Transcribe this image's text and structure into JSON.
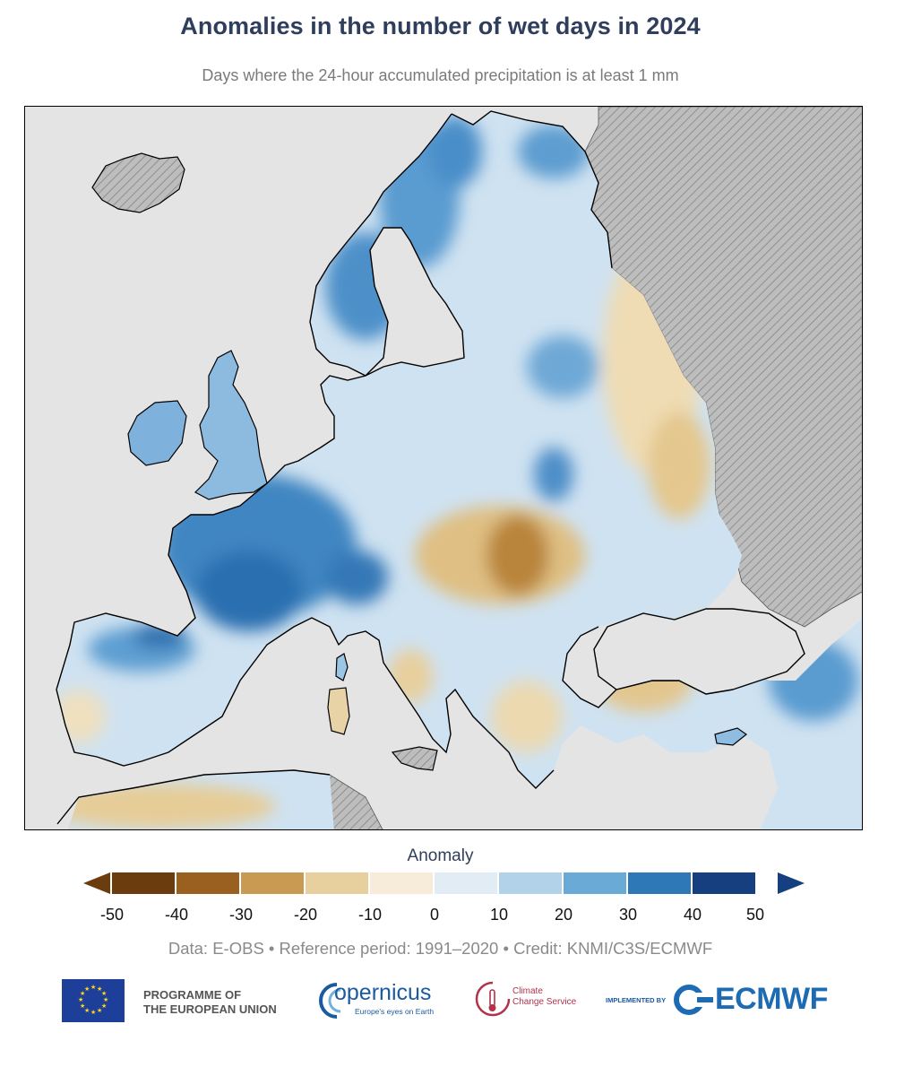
{
  "header": {
    "title": "Anomalies in the number of wet days in 2024",
    "subtitle": "Days where the 24-hour accumulated precipitation is at least 1 mm"
  },
  "legend": {
    "title": "Anomaly",
    "bins": [
      {
        "from": -50,
        "to": -40,
        "color": "#6b3d0e"
      },
      {
        "from": -40,
        "to": -30,
        "color": "#9a6020"
      },
      {
        "from": -30,
        "to": -20,
        "color": "#c99a52"
      },
      {
        "from": -20,
        "to": -10,
        "color": "#e8d09e"
      },
      {
        "from": -10,
        "to": 0,
        "color": "#f6ecd9"
      },
      {
        "from": 0,
        "to": 10,
        "color": "#e2ecf5"
      },
      {
        "from": 10,
        "to": 20,
        "color": "#b2d2ea"
      },
      {
        "from": 20,
        "to": 30,
        "color": "#6aaad6"
      },
      {
        "from": 30,
        "to": 40,
        "color": "#2f78b7"
      },
      {
        "from": 40,
        "to": 50,
        "color": "#153f7e"
      }
    ],
    "tick_labels": [
      "-50",
      "-40",
      "-30",
      "-20",
      "-10",
      "0",
      "10",
      "20",
      "30",
      "40",
      "50"
    ],
    "extend_low_color": "#6b3d0e",
    "extend_high_color": "#153f7e"
  },
  "map": {
    "sea_color": "#e4e4e4",
    "no_data_color": "#b9b9b9"
  },
  "footer": {
    "credit": "Data: E-OBS • Reference period: 1991–2020 • Credit: KNMI/C3S/ECMWF",
    "eu_text_line1": "PROGRAMME OF",
    "eu_text_line2": "THE EUROPEAN UNION",
    "copernicus_name": "opernicus",
    "copernicus_tag": "Europe's eyes on Earth",
    "c3s_line1": "Climate",
    "c3s_line2": "Change Service",
    "implemented_by": "IMPLEMENTED BY",
    "ecmwf_name": "ECMWF"
  }
}
